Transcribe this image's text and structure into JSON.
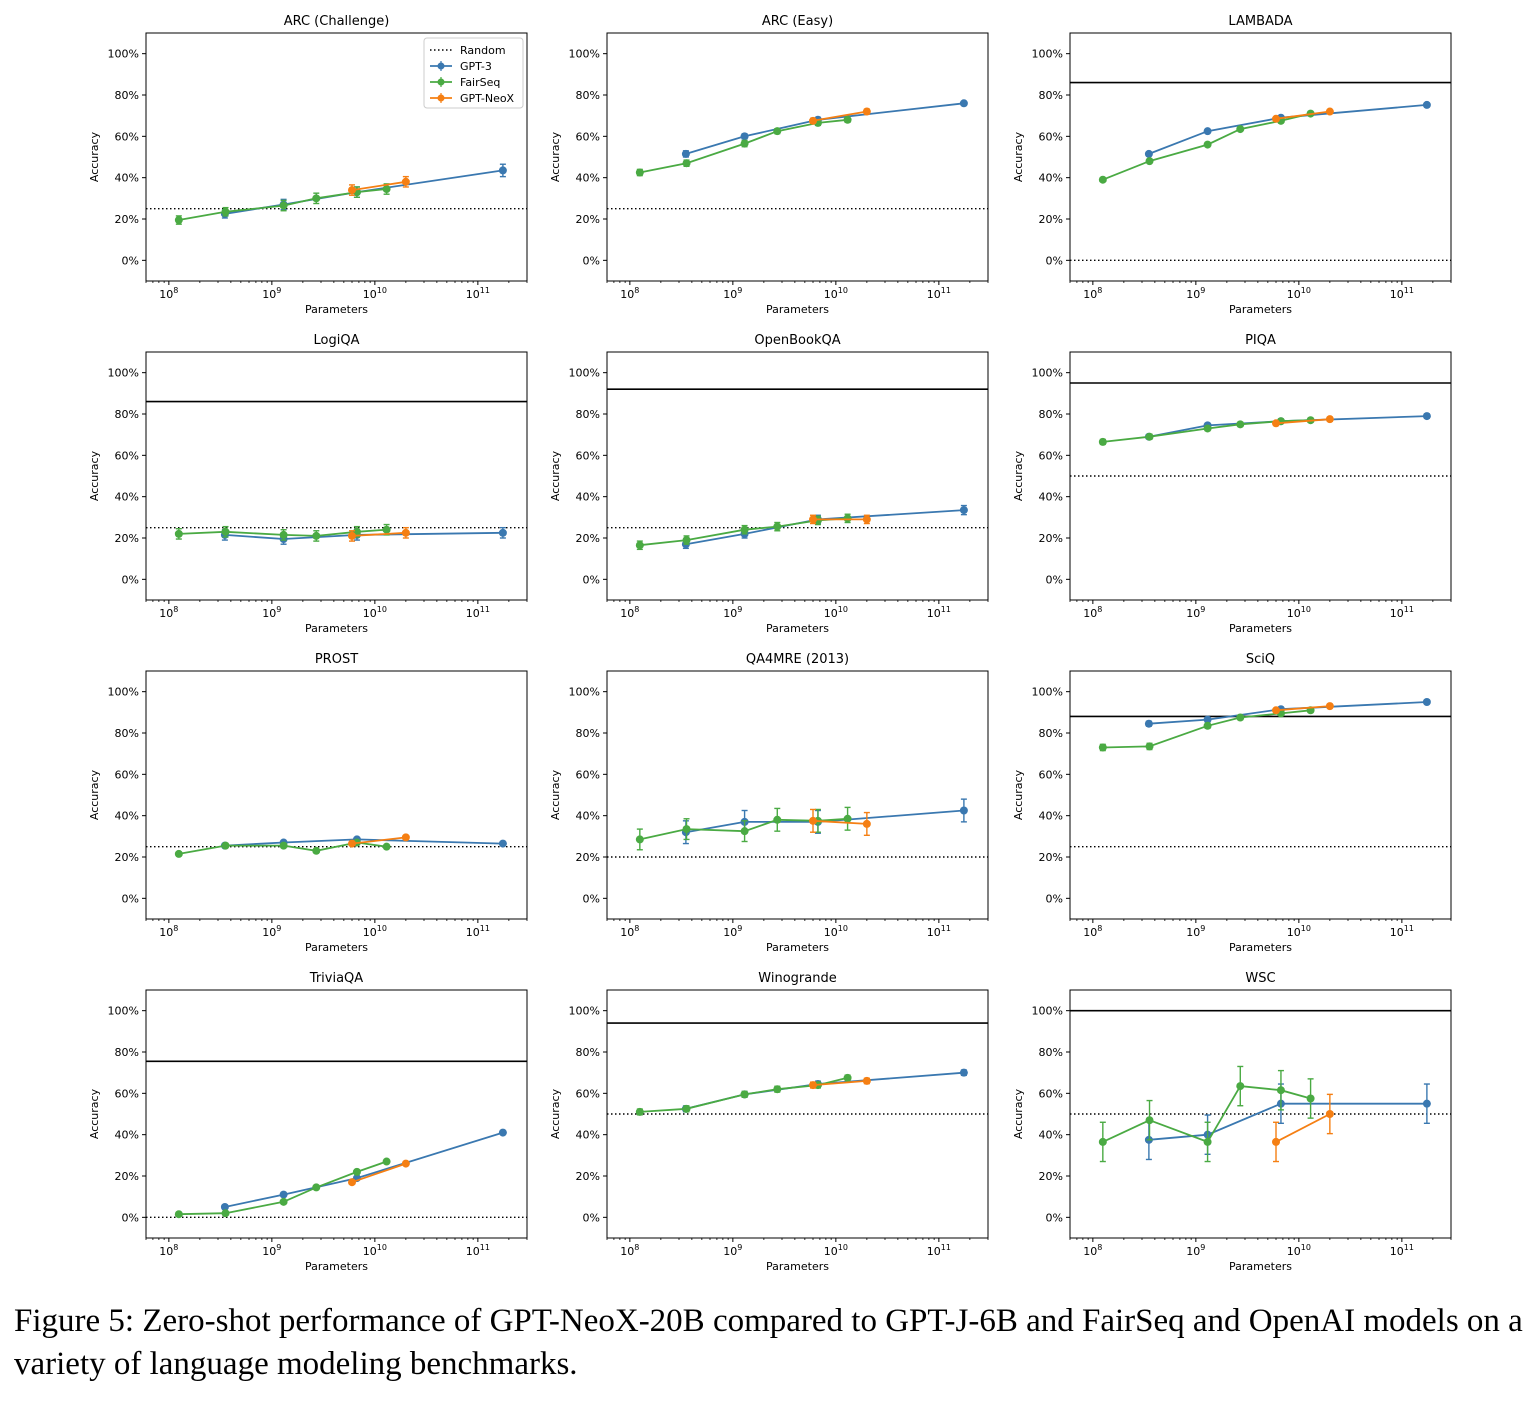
{
  "caption": "Figure 5: Zero-shot performance of GPT-NeoX-20B compared to GPT-J-6B and FairSeq and OpenAI models on a variety of language modeling benchmarks.",
  "colors": {
    "gpt3": "#3a78b0",
    "fairseq": "#4aaa43",
    "neox": "#f57f13",
    "random": "#000000",
    "human": "#000000"
  },
  "legend": {
    "placement": "top-right",
    "entries": [
      "Random",
      "GPT-3",
      "FairSeq",
      "GPT-NeoX"
    ]
  },
  "axis_text": {
    "xlabel": "Parameters",
    "ylabel": "Accuracy",
    "yticks": [
      "0%",
      "20%",
      "40%",
      "60%",
      "80%",
      "100%"
    ],
    "xtick_base": "10",
    "xtick_exponents": [
      "8",
      "9",
      "10",
      "11"
    ]
  },
  "chart_data": [
    {
      "type": "line",
      "title": "ARC (Challenge)",
      "xscale": "log",
      "xlim": [
        60000000.0,
        300000000000.0
      ],
      "ylim": [
        -0.1,
        1.1
      ],
      "random": 0.25,
      "human": null,
      "legend": true,
      "series": [
        {
          "name": "GPT-3",
          "x": [
            350000000.0,
            1300000000.0,
            6700000000.0,
            175000000000.0
          ],
          "y": [
            0.225,
            0.27,
            0.33,
            0.435
          ],
          "err": [
            0.02,
            0.025,
            0.025,
            0.03
          ]
        },
        {
          "name": "FairSeq",
          "x": [
            125000000.0,
            355000000.0,
            1300000000.0,
            2700000000.0,
            6700000000.0,
            13000000000.0
          ],
          "y": [
            0.195,
            0.235,
            0.265,
            0.3,
            0.33,
            0.345
          ],
          "err": [
            0.02,
            0.02,
            0.025,
            0.025,
            0.025,
            0.025
          ]
        },
        {
          "name": "GPT-NeoX",
          "x": [
            6000000000.0,
            20000000000.0
          ],
          "y": [
            0.34,
            0.38
          ],
          "err": [
            0.025,
            0.025
          ]
        }
      ]
    },
    {
      "type": "line",
      "title": "ARC (Easy)",
      "xscale": "log",
      "xlim": [
        60000000.0,
        300000000000.0
      ],
      "ylim": [
        -0.1,
        1.1
      ],
      "random": 0.25,
      "human": null,
      "legend": false,
      "series": [
        {
          "name": "GPT-3",
          "x": [
            350000000.0,
            1300000000.0,
            6700000000.0,
            175000000000.0
          ],
          "y": [
            0.515,
            0.6,
            0.68,
            0.76
          ],
          "err": [
            0.015,
            0.012,
            0.012,
            0.01
          ]
        },
        {
          "name": "FairSeq",
          "x": [
            125000000.0,
            355000000.0,
            1300000000.0,
            2700000000.0,
            6700000000.0,
            13000000000.0
          ],
          "y": [
            0.425,
            0.47,
            0.565,
            0.625,
            0.665,
            0.68
          ],
          "err": [
            0.015,
            0.015,
            0.015,
            0.012,
            0.012,
            0.012
          ]
        },
        {
          "name": "GPT-NeoX",
          "x": [
            6000000000.0,
            20000000000.0
          ],
          "y": [
            0.675,
            0.72
          ],
          "err": [
            0.012,
            0.012
          ]
        }
      ]
    },
    {
      "type": "line",
      "title": "LAMBADA",
      "xscale": "log",
      "xlim": [
        60000000.0,
        300000000000.0
      ],
      "ylim": [
        -0.1,
        1.1
      ],
      "random": 0.0,
      "human": 0.86,
      "legend": false,
      "series": [
        {
          "name": "GPT-3",
          "x": [
            350000000.0,
            1300000000.0,
            6700000000.0,
            175000000000.0
          ],
          "y": [
            0.515,
            0.625,
            0.69,
            0.752
          ],
          "err": [
            0.006,
            0.006,
            0.006,
            0.006
          ]
        },
        {
          "name": "FairSeq",
          "x": [
            125000000.0,
            355000000.0,
            1300000000.0,
            2700000000.0,
            6700000000.0,
            13000000000.0
          ],
          "y": [
            0.39,
            0.48,
            0.56,
            0.635,
            0.675,
            0.71
          ],
          "err": [
            0.006,
            0.006,
            0.006,
            0.006,
            0.006,
            0.006
          ]
        },
        {
          "name": "GPT-NeoX",
          "x": [
            6000000000.0,
            20000000000.0
          ],
          "y": [
            0.685,
            0.72
          ],
          "err": [
            0.006,
            0.006
          ]
        }
      ]
    },
    {
      "type": "line",
      "title": "LogiQA",
      "xscale": "log",
      "xlim": [
        60000000.0,
        300000000000.0
      ],
      "ylim": [
        -0.1,
        1.1
      ],
      "random": 0.25,
      "human": 0.86,
      "legend": false,
      "series": [
        {
          "name": "GPT-3",
          "x": [
            350000000.0,
            1300000000.0,
            6700000000.0,
            175000000000.0
          ],
          "y": [
            0.215,
            0.195,
            0.215,
            0.225
          ],
          "err": [
            0.025,
            0.025,
            0.025,
            0.025
          ]
        },
        {
          "name": "FairSeq",
          "x": [
            125000000.0,
            355000000.0,
            1300000000.0,
            2700000000.0,
            6700000000.0,
            13000000000.0
          ],
          "y": [
            0.22,
            0.23,
            0.215,
            0.21,
            0.23,
            0.24
          ],
          "err": [
            0.025,
            0.025,
            0.025,
            0.025,
            0.025,
            0.025
          ]
        },
        {
          "name": "GPT-NeoX",
          "x": [
            6000000000.0,
            20000000000.0
          ],
          "y": [
            0.21,
            0.225
          ],
          "err": [
            0.025,
            0.025
          ]
        }
      ]
    },
    {
      "type": "line",
      "title": "OpenBookQA",
      "xscale": "log",
      "xlim": [
        60000000.0,
        300000000000.0
      ],
      "ylim": [
        -0.1,
        1.1
      ],
      "random": 0.25,
      "human": 0.92,
      "legend": false,
      "series": [
        {
          "name": "GPT-3",
          "x": [
            350000000.0,
            1300000000.0,
            6700000000.0,
            175000000000.0
          ],
          "y": [
            0.17,
            0.22,
            0.29,
            0.335
          ],
          "err": [
            0.02,
            0.02,
            0.02,
            0.022
          ]
        },
        {
          "name": "FairSeq",
          "x": [
            125000000.0,
            355000000.0,
            1300000000.0,
            2700000000.0,
            6700000000.0,
            13000000000.0
          ],
          "y": [
            0.165,
            0.19,
            0.24,
            0.255,
            0.285,
            0.295
          ],
          "err": [
            0.02,
            0.02,
            0.02,
            0.02,
            0.02,
            0.02
          ]
        },
        {
          "name": "GPT-NeoX",
          "x": [
            6000000000.0,
            20000000000.0
          ],
          "y": [
            0.29,
            0.29
          ],
          "err": [
            0.02,
            0.02
          ]
        }
      ]
    },
    {
      "type": "line",
      "title": "PIQA",
      "xscale": "log",
      "xlim": [
        60000000.0,
        300000000000.0
      ],
      "ylim": [
        -0.1,
        1.1
      ],
      "random": 0.5,
      "human": 0.95,
      "legend": false,
      "series": [
        {
          "name": "GPT-3",
          "x": [
            350000000.0,
            1300000000.0,
            6700000000.0,
            175000000000.0
          ],
          "y": [
            0.69,
            0.745,
            0.765,
            0.79
          ],
          "err": [
            0.01,
            0.01,
            0.01,
            0.01
          ]
        },
        {
          "name": "FairSeq",
          "x": [
            125000000.0,
            355000000.0,
            1300000000.0,
            2700000000.0,
            6700000000.0,
            13000000000.0
          ],
          "y": [
            0.665,
            0.69,
            0.73,
            0.75,
            0.765,
            0.77
          ],
          "err": [
            0.012,
            0.012,
            0.01,
            0.01,
            0.01,
            0.01
          ]
        },
        {
          "name": "GPT-NeoX",
          "x": [
            6000000000.0,
            20000000000.0
          ],
          "y": [
            0.755,
            0.775
          ],
          "err": [
            0.01,
            0.01
          ]
        }
      ]
    },
    {
      "type": "line",
      "title": "PROST",
      "xscale": "log",
      "xlim": [
        60000000.0,
        300000000000.0
      ],
      "ylim": [
        -0.1,
        1.1
      ],
      "random": 0.25,
      "human": null,
      "legend": false,
      "series": [
        {
          "name": "GPT-3",
          "x": [
            350000000.0,
            1300000000.0,
            6700000000.0,
            175000000000.0
          ],
          "y": [
            0.255,
            0.27,
            0.285,
            0.265
          ],
          "err": [
            0.004,
            0.004,
            0.004,
            0.004
          ]
        },
        {
          "name": "FairSeq",
          "x": [
            125000000.0,
            355000000.0,
            1300000000.0,
            2700000000.0,
            6700000000.0,
            13000000000.0
          ],
          "y": [
            0.215,
            0.255,
            0.255,
            0.23,
            0.27,
            0.25
          ],
          "err": [
            0.004,
            0.004,
            0.004,
            0.004,
            0.004,
            0.004
          ]
        },
        {
          "name": "GPT-NeoX",
          "x": [
            6000000000.0,
            20000000000.0
          ],
          "y": [
            0.265,
            0.295
          ],
          "err": [
            0.004,
            0.004
          ]
        }
      ]
    },
    {
      "type": "line",
      "title": "QA4MRE (2013)",
      "xscale": "log",
      "xlim": [
        60000000.0,
        300000000000.0
      ],
      "ylim": [
        -0.1,
        1.1
      ],
      "random": 0.2,
      "human": null,
      "legend": false,
      "series": [
        {
          "name": "GPT-3",
          "x": [
            350000000.0,
            1300000000.0,
            6700000000.0,
            175000000000.0
          ],
          "y": [
            0.32,
            0.37,
            0.37,
            0.425
          ],
          "err": [
            0.055,
            0.055,
            0.055,
            0.055
          ]
        },
        {
          "name": "FairSeq",
          "x": [
            125000000.0,
            355000000.0,
            1300000000.0,
            2700000000.0,
            6700000000.0,
            13000000000.0
          ],
          "y": [
            0.285,
            0.335,
            0.325,
            0.38,
            0.375,
            0.385
          ],
          "err": [
            0.05,
            0.05,
            0.05,
            0.055,
            0.055,
            0.055
          ]
        },
        {
          "name": "GPT-NeoX",
          "x": [
            6000000000.0,
            20000000000.0
          ],
          "y": [
            0.375,
            0.36
          ],
          "err": [
            0.055,
            0.055
          ]
        }
      ]
    },
    {
      "type": "line",
      "title": "SciQ",
      "xscale": "log",
      "xlim": [
        60000000.0,
        300000000000.0
      ],
      "ylim": [
        -0.1,
        1.1
      ],
      "random": 0.25,
      "human": 0.88,
      "legend": false,
      "series": [
        {
          "name": "GPT-3",
          "x": [
            350000000.0,
            1300000000.0,
            6700000000.0,
            175000000000.0
          ],
          "y": [
            0.845,
            0.865,
            0.915,
            0.95
          ],
          "err": [
            0.012,
            0.01,
            0.01,
            0.007
          ]
        },
        {
          "name": "FairSeq",
          "x": [
            125000000.0,
            355000000.0,
            1300000000.0,
            2700000000.0,
            6700000000.0,
            13000000000.0
          ],
          "y": [
            0.73,
            0.735,
            0.835,
            0.875,
            0.895,
            0.91
          ],
          "err": [
            0.015,
            0.015,
            0.012,
            0.01,
            0.01,
            0.01
          ]
        },
        {
          "name": "GPT-NeoX",
          "x": [
            6000000000.0,
            20000000000.0
          ],
          "y": [
            0.91,
            0.93
          ],
          "err": [
            0.008,
            0.008
          ]
        }
      ]
    },
    {
      "type": "line",
      "title": "TriviaQA",
      "xscale": "log",
      "xlim": [
        60000000.0,
        300000000000.0
      ],
      "ylim": [
        -0.1,
        1.1
      ],
      "random": 0.0,
      "human": 0.755,
      "legend": false,
      "series": [
        {
          "name": "GPT-3",
          "x": [
            350000000.0,
            1300000000.0,
            6700000000.0,
            175000000000.0
          ],
          "y": [
            0.05,
            0.11,
            0.19,
            0.41
          ],
          "err": [
            0.003,
            0.003,
            0.003,
            0.003
          ]
        },
        {
          "name": "FairSeq",
          "x": [
            125000000.0,
            355000000.0,
            1300000000.0,
            2700000000.0,
            6700000000.0,
            13000000000.0
          ],
          "y": [
            0.015,
            0.02,
            0.075,
            0.145,
            0.22,
            0.27
          ],
          "err": [
            0.003,
            0.003,
            0.003,
            0.003,
            0.003,
            0.003
          ]
        },
        {
          "name": "GPT-NeoX",
          "x": [
            6000000000.0,
            20000000000.0
          ],
          "y": [
            0.17,
            0.26
          ],
          "err": [
            0.003,
            0.003
          ]
        }
      ]
    },
    {
      "type": "line",
      "title": "Winogrande",
      "xscale": "log",
      "xlim": [
        60000000.0,
        300000000000.0
      ],
      "ylim": [
        -0.1,
        1.1
      ],
      "random": 0.5,
      "human": 0.94,
      "legend": false,
      "series": [
        {
          "name": "GPT-3",
          "x": [
            350000000.0,
            1300000000.0,
            6700000000.0,
            175000000000.0
          ],
          "y": [
            0.525,
            0.595,
            0.645,
            0.7
          ],
          "err": [
            0.014,
            0.014,
            0.014,
            0.013
          ]
        },
        {
          "name": "FairSeq",
          "x": [
            125000000.0,
            355000000.0,
            1300000000.0,
            2700000000.0,
            6700000000.0,
            13000000000.0
          ],
          "y": [
            0.51,
            0.525,
            0.595,
            0.62,
            0.64,
            0.675
          ],
          "err": [
            0.014,
            0.014,
            0.014,
            0.014,
            0.014,
            0.013
          ]
        },
        {
          "name": "GPT-NeoX",
          "x": [
            6000000000.0,
            20000000000.0
          ],
          "y": [
            0.64,
            0.66
          ],
          "err": [
            0.014,
            0.013
          ]
        }
      ]
    },
    {
      "type": "line",
      "title": "WSC",
      "xscale": "log",
      "xlim": [
        60000000.0,
        300000000000.0
      ],
      "ylim": [
        -0.1,
        1.1
      ],
      "random": 0.5,
      "human": 1.0,
      "legend": false,
      "series": [
        {
          "name": "GPT-3",
          "x": [
            350000000.0,
            1300000000.0,
            6700000000.0,
            175000000000.0
          ],
          "y": [
            0.375,
            0.4,
            0.55,
            0.55
          ],
          "err": [
            0.095,
            0.095,
            0.095,
            0.095
          ]
        },
        {
          "name": "FairSeq",
          "x": [
            125000000.0,
            355000000.0,
            1300000000.0,
            2700000000.0,
            6700000000.0,
            13000000000.0
          ],
          "y": [
            0.365,
            0.47,
            0.365,
            0.635,
            0.615,
            0.575
          ],
          "err": [
            0.095,
            0.095,
            0.095,
            0.095,
            0.095,
            0.095
          ]
        },
        {
          "name": "GPT-NeoX",
          "x": [
            6000000000.0,
            20000000000.0
          ],
          "y": [
            0.365,
            0.5
          ],
          "err": [
            0.095,
            0.095
          ]
        }
      ]
    }
  ]
}
